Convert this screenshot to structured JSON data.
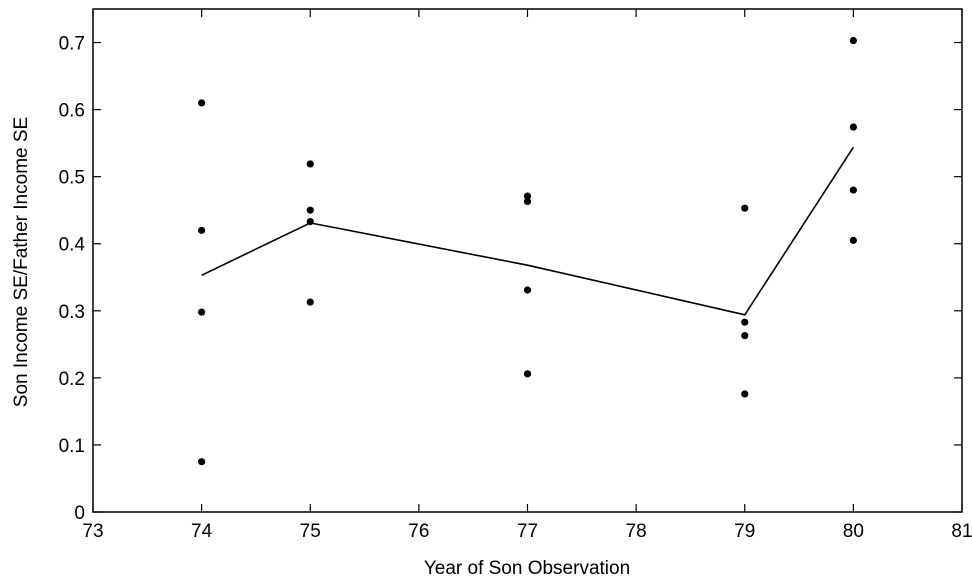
{
  "chart_data": {
    "type": "scatter",
    "title": "",
    "xlabel": "Year of Son Observation",
    "ylabel": "Son Income SE/Father Income SE",
    "xlim": [
      73,
      81
    ],
    "ylim": [
      0,
      0.75
    ],
    "x_ticks": [
      73,
      74,
      75,
      76,
      77,
      78,
      79,
      80,
      81
    ],
    "y_ticks": [
      0,
      0.1,
      0.2,
      0.3,
      0.4,
      0.5,
      0.6,
      0.7
    ],
    "x_tick_labels": [
      "73",
      "74",
      "75",
      "76",
      "77",
      "78",
      "79",
      "80",
      "81"
    ],
    "y_tick_labels": [
      "0",
      "0.1",
      "0.2",
      "0.3",
      "0.4",
      "0.5",
      "0.6",
      "0.7"
    ],
    "grid": false,
    "legend": "none",
    "series": [
      {
        "kind": "scatter",
        "points": [
          {
            "x": 74,
            "y": 0.61
          },
          {
            "x": 74,
            "y": 0.42
          },
          {
            "x": 74,
            "y": 0.298
          },
          {
            "x": 74,
            "y": 0.075
          },
          {
            "x": 75,
            "y": 0.519
          },
          {
            "x": 75,
            "y": 0.45
          },
          {
            "x": 75,
            "y": 0.433
          },
          {
            "x": 75,
            "y": 0.313
          },
          {
            "x": 77,
            "y": 0.471
          },
          {
            "x": 77,
            "y": 0.463
          },
          {
            "x": 77,
            "y": 0.331
          },
          {
            "x": 77,
            "y": 0.206
          },
          {
            "x": 79,
            "y": 0.453
          },
          {
            "x": 79,
            "y": 0.283
          },
          {
            "x": 79,
            "y": 0.263
          },
          {
            "x": 79,
            "y": 0.176
          },
          {
            "x": 80,
            "y": 0.703
          },
          {
            "x": 80,
            "y": 0.574
          },
          {
            "x": 80,
            "y": 0.48
          },
          {
            "x": 80,
            "y": 0.405
          }
        ]
      },
      {
        "kind": "line",
        "points": [
          {
            "x": 74,
            "y": 0.353
          },
          {
            "x": 75,
            "y": 0.431
          },
          {
            "x": 77,
            "y": 0.368
          },
          {
            "x": 79,
            "y": 0.294
          },
          {
            "x": 80,
            "y": 0.544
          }
        ]
      }
    ]
  }
}
